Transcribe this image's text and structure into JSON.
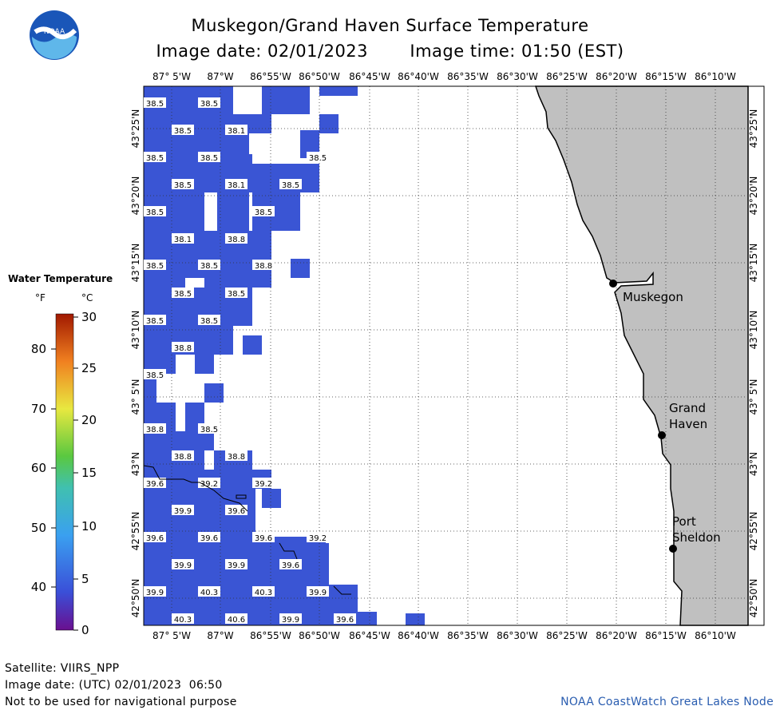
{
  "header": {
    "title": "Muskegon/Grand Haven Surface Temperature",
    "image_date": "Image date: 02/01/2023",
    "image_time": "Image time: 01:50 (EST)"
  },
  "legend": {
    "title": "Water Temperature",
    "unit_f": "°F",
    "unit_c": "°C",
    "f_ticks": [
      "80",
      "70",
      "60",
      "50",
      "40"
    ],
    "c_ticks": [
      "30",
      "25",
      "20",
      "15",
      "10",
      "5",
      "0"
    ]
  },
  "map": {
    "lon_labels": [
      "87° 5'W",
      "87°W",
      "86°55'W",
      "86°50'W",
      "86°45'W",
      "86°40'W",
      "86°35'W",
      "86°30'W",
      "86°25'W",
      "86°20'W",
      "86°15'W",
      "86°10'W"
    ],
    "lat_labels": [
      "43°25'N",
      "43°20'N",
      "43°15'N",
      "43°10'N",
      "43° 5'N",
      "43°N",
      "42°55'N",
      "42°50'N"
    ],
    "places": [
      "Muskegon",
      "Grand",
      "Haven",
      "Port",
      "Sheldon"
    ],
    "temps": [
      {
        "t": "38.5"
      },
      {
        "t": "38.5"
      },
      {
        "t": "38.5"
      },
      {
        "t": "38.1"
      },
      {
        "t": "38.5"
      },
      {
        "t": "38.5"
      },
      {
        "t": "38.5"
      },
      {
        "t": "38.5"
      },
      {
        "t": "38.1"
      },
      {
        "t": "38.5"
      },
      {
        "t": "38.5"
      },
      {
        "t": "38.5"
      },
      {
        "t": "38.1"
      },
      {
        "t": "38.8"
      },
      {
        "t": "38.5"
      },
      {
        "t": "38.5"
      },
      {
        "t": "38.8"
      },
      {
        "t": "38.5"
      },
      {
        "t": "38.5"
      },
      {
        "t": "38.5"
      },
      {
        "t": "38.5"
      },
      {
        "t": "38.8"
      },
      {
        "t": "38.5"
      },
      {
        "t": "38.8"
      },
      {
        "t": "38.5"
      },
      {
        "t": "38.8"
      },
      {
        "t": "38.8"
      },
      {
        "t": "39.6"
      },
      {
        "t": "39.2"
      },
      {
        "t": "39.2"
      },
      {
        "t": "39.9"
      },
      {
        "t": "39.6"
      },
      {
        "t": "39.6"
      },
      {
        "t": "39.6"
      },
      {
        "t": "39.6"
      },
      {
        "t": "39.2"
      },
      {
        "t": "39.9"
      },
      {
        "t": "39.9"
      },
      {
        "t": "39.6"
      },
      {
        "t": "39.9"
      },
      {
        "t": "40.3"
      },
      {
        "t": "40.3"
      },
      {
        "t": "39.9"
      },
      {
        "t": "40.3"
      },
      {
        "t": "40.6"
      },
      {
        "t": "39.9"
      },
      {
        "t": "39.6"
      }
    ]
  },
  "footer": {
    "satellite": "Satellite: VIIRS_NPP",
    "utc": "Image date: (UTC) 02/01/2023  06:50",
    "disclaimer": "Not to be used for navigational purpose",
    "credit": "NOAA CoastWatch Great Lakes Node"
  },
  "colors": {
    "water": "#3a55d4",
    "land": "#c0c0c0",
    "accent_credit": "#2a5db0"
  }
}
